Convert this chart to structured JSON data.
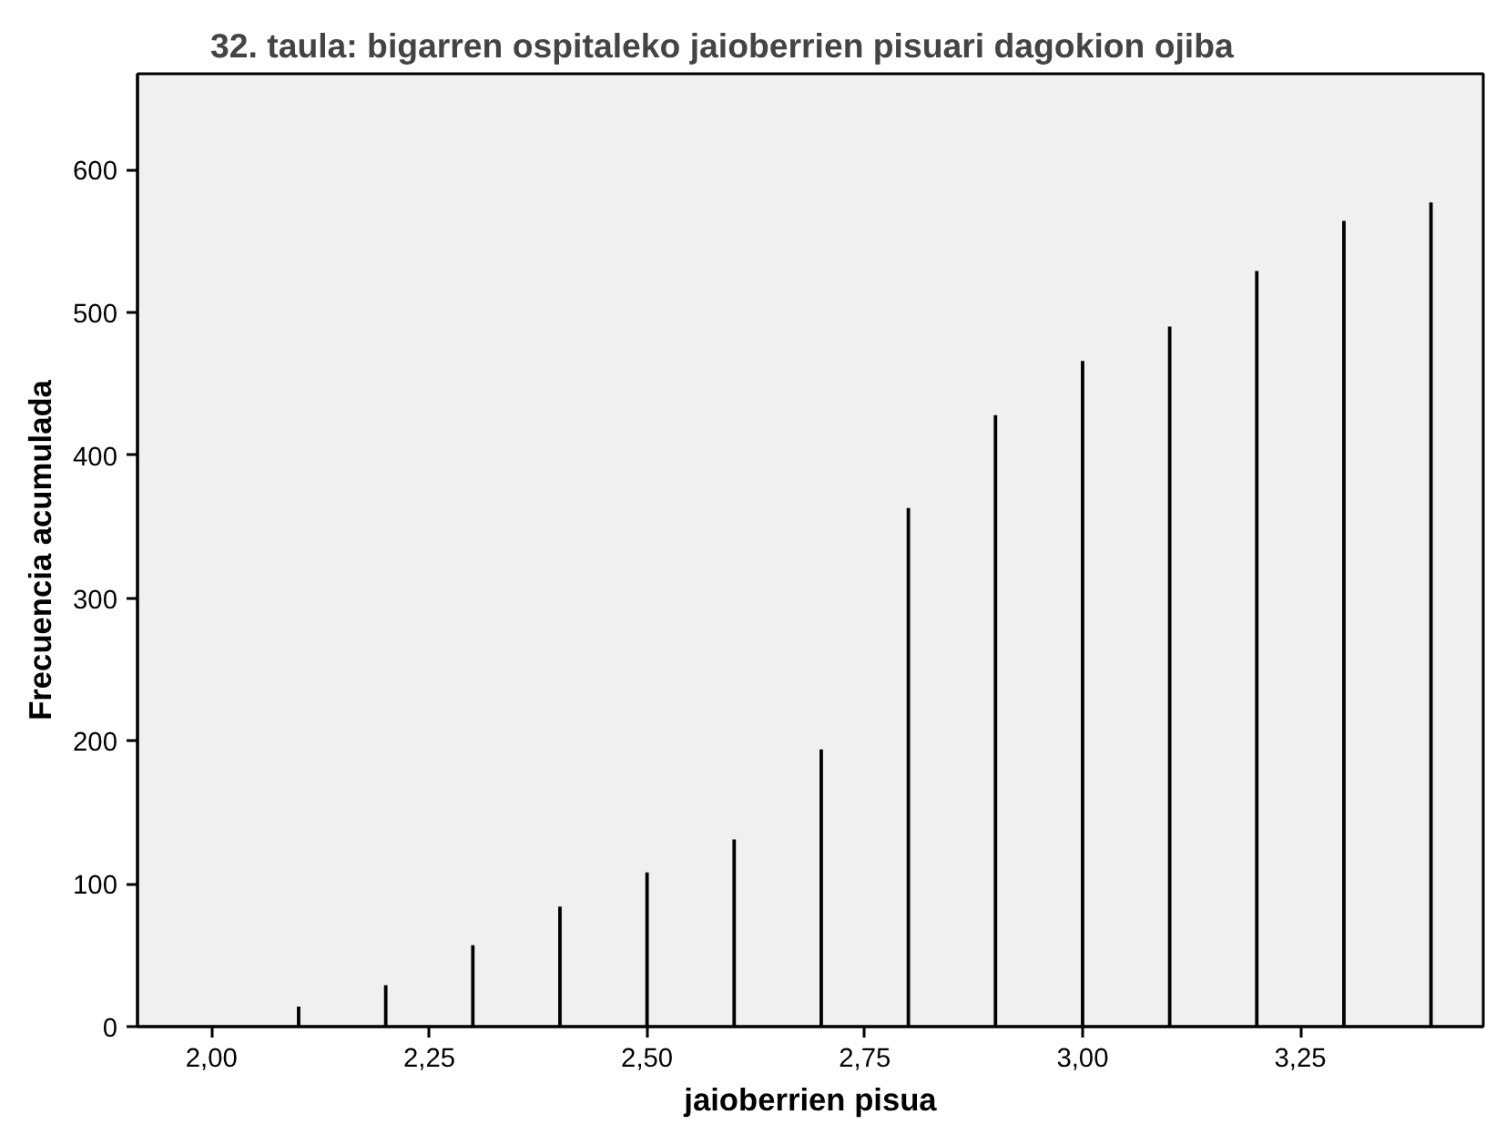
{
  "chart_data": {
    "type": "bar",
    "title": "32. taula: bigarren ospitaleko jaioberrien pisuari dagokion ojiba",
    "xlabel": "jaioberrien pisua",
    "ylabel": "Frecuencia acumulada",
    "x": [
      2.1,
      2.2,
      2.3,
      2.4,
      2.5,
      2.6,
      2.7,
      2.8,
      2.9,
      3.0,
      3.1,
      3.2,
      3.3,
      3.4
    ],
    "series": [
      {
        "color": "#000000",
        "values": [
          14,
          29,
          57,
          84,
          108,
          131,
          194,
          363,
          428,
          466,
          490,
          529,
          564,
          577
        ]
      }
    ],
    "xlim": [
      1.915,
      3.46
    ],
    "ylim": [
      0,
      667
    ],
    "xticks": [
      {
        "value": 2.0,
        "label": "2,00"
      },
      {
        "value": 2.25,
        "label": "2,25"
      },
      {
        "value": 2.5,
        "label": "2,50"
      },
      {
        "value": 2.75,
        "label": "2,75"
      },
      {
        "value": 3.0,
        "label": "3,00"
      },
      {
        "value": 3.25,
        "label": "3,25"
      }
    ],
    "yticks": [
      0,
      100,
      200,
      300,
      400,
      500,
      600
    ],
    "grid": false
  }
}
